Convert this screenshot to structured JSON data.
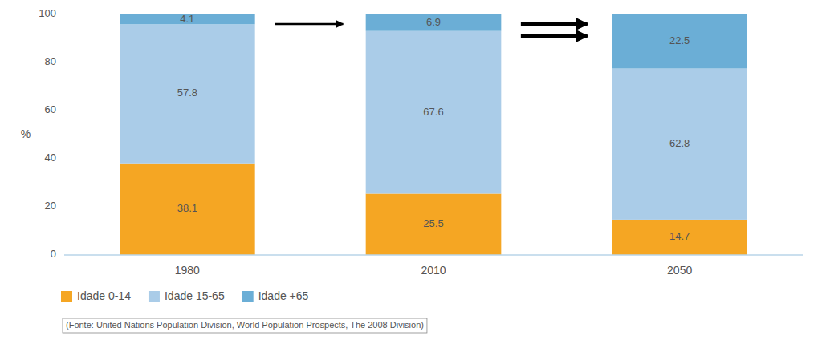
{
  "chart_data": {
    "type": "bar",
    "stacked": true,
    "categories": [
      "1980",
      "2010",
      "2050"
    ],
    "series": [
      {
        "name": "Idade 0-14",
        "color": "#F5A623",
        "values": [
          38.1,
          25.5,
          14.7
        ]
      },
      {
        "name": "Idade 15-65",
        "color": "#AACCE8",
        "values": [
          57.8,
          67.6,
          62.8
        ]
      },
      {
        "name": "Idade +65",
        "color": "#6BAED6",
        "values": [
          4.1,
          6.9,
          22.5
        ]
      }
    ],
    "y_label": "%",
    "ylim": [
      0,
      100
    ],
    "yticks": [
      0,
      20,
      40,
      60,
      80,
      100
    ],
    "grid": false,
    "legend": "bottom left",
    "data_labels": true,
    "annotations": [
      "(Fonte: United Nations Population Division, World Population Prospects, The 2008 Division)"
    ]
  }
}
